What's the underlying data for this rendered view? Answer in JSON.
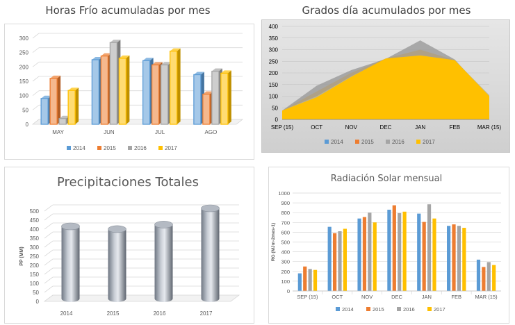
{
  "colors": {
    "s2014": "#5b9bd5",
    "s2015": "#ed7d31",
    "s2016": "#a5a5a5",
    "s2017": "#ffc000"
  },
  "chart_data": [
    {
      "type": "bar",
      "title": "Horas Frío acumuladas por mes",
      "categories": [
        "MAY",
        "JUN",
        "JUL",
        "AGO"
      ],
      "series": [
        {
          "name": "2014",
          "values": [
            90,
            225,
            222,
            173
          ]
        },
        {
          "name": "2015",
          "values": [
            160,
            238,
            207,
            105
          ]
        },
        {
          "name": "2016",
          "values": [
            20,
            285,
            207,
            185
          ]
        },
        {
          "name": "2017",
          "values": [
            118,
            230,
            255,
            178
          ]
        }
      ],
      "ylim": [
        0,
        300
      ],
      "yticks": [
        "0",
        "50",
        "100",
        "150",
        "200",
        "250",
        "300"
      ],
      "legend": "bottom",
      "grid": true
    },
    {
      "type": "area",
      "title": "Grados día acumulados por mes",
      "categories": [
        "SEP (15)",
        "OCT",
        "NOV",
        "DEC",
        "JAN",
        "FEB",
        "MAR (15)"
      ],
      "series": [
        {
          "name": "2014",
          "values": [
            38,
            100,
            185,
            260,
            275,
            255,
            105
          ]
        },
        {
          "name": "2015",
          "values": [
            38,
            120,
            200,
            262,
            300,
            255,
            100
          ]
        },
        {
          "name": "2016",
          "values": [
            38,
            145,
            212,
            260,
            340,
            258,
            95
          ]
        },
        {
          "name": "2017",
          "values": [
            38,
            95,
            183,
            262,
            275,
            255,
            100
          ]
        }
      ],
      "ylim": [
        0,
        400
      ],
      "yticks": [
        "0",
        "50",
        "100",
        "150",
        "200",
        "250",
        "300",
        "350",
        "400"
      ],
      "legend": "bottom",
      "grid": true
    },
    {
      "type": "bar",
      "title": "Precipitaciones Totales",
      "categories": [
        "2014",
        "2015",
        "2016",
        "2017"
      ],
      "values": [
        400,
        385,
        410,
        500
      ],
      "ylabel": "PP (MM)",
      "ylim": [
        0,
        500
      ],
      "yticks": [
        "0",
        "50",
        "100",
        "150",
        "200",
        "250",
        "300",
        "350",
        "400",
        "450",
        "500"
      ],
      "grid": true
    },
    {
      "type": "bar",
      "title": "Radiación Solar mensual",
      "categories": [
        "SEP (15)",
        "OCT",
        "NOV",
        "DEC",
        "JAN",
        "FEB",
        "MAR (15)"
      ],
      "series": [
        {
          "name": "2014",
          "values": [
            180,
            655,
            740,
            830,
            790,
            665,
            320
          ]
        },
        {
          "name": "2015",
          "values": [
            250,
            590,
            755,
            875,
            705,
            680,
            245
          ]
        },
        {
          "name": "2016",
          "values": [
            225,
            610,
            800,
            795,
            885,
            665,
            295
          ]
        },
        {
          "name": "2017",
          "values": [
            215,
            635,
            700,
            810,
            740,
            645,
            265
          ]
        }
      ],
      "ylabel": "RG (MJm-2mes-1)",
      "ylim": [
        0,
        1000
      ],
      "yticks": [
        "0",
        "100",
        "200",
        "300",
        "400",
        "500",
        "600",
        "700",
        "800",
        "900",
        "1000"
      ],
      "legend": "bottom",
      "grid": true
    }
  ]
}
